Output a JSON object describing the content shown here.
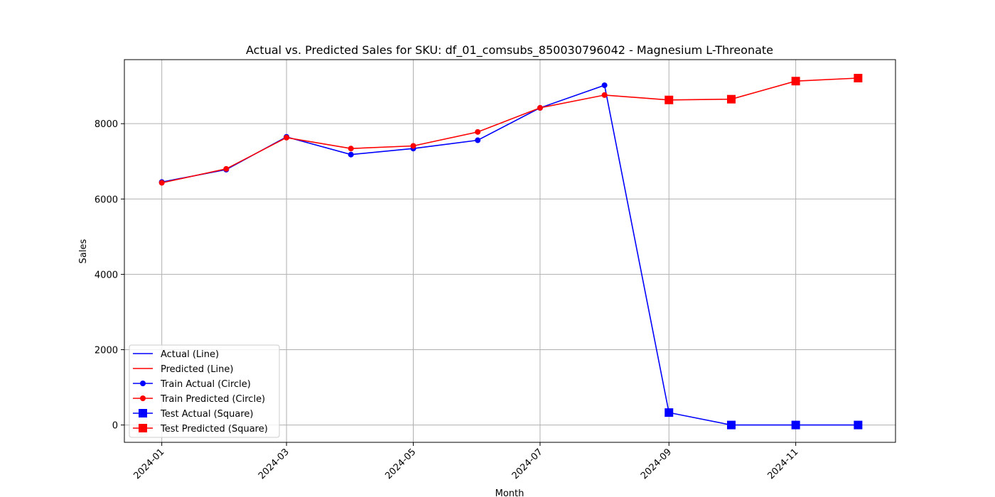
{
  "chart_data": {
    "type": "line",
    "title": "Actual vs. Predicted Sales for SKU: df_01_comsubs_850030796042 - Magnesium L-Threonate",
    "xlabel": "Month",
    "ylabel": "Sales",
    "x": [
      "2024-01-01",
      "2024-02-01",
      "2024-03-01",
      "2024-04-01",
      "2024-05-01",
      "2024-06-01",
      "2024-07-01",
      "2024-08-01",
      "2024-09-01",
      "2024-10-01",
      "2024-11-01",
      "2024-12-01"
    ],
    "x_range": [
      "2023-12-14",
      "2024-12-19"
    ],
    "ylim": [
      -460,
      9700
    ],
    "x_ticks": [
      {
        "date": "2024-01-01",
        "label": "2024-01"
      },
      {
        "date": "2024-03-01",
        "label": "2024-03"
      },
      {
        "date": "2024-05-01",
        "label": "2024-05"
      },
      {
        "date": "2024-07-01",
        "label": "2024-07"
      },
      {
        "date": "2024-09-01",
        "label": "2024-09"
      },
      {
        "date": "2024-11-01",
        "label": "2024-11"
      }
    ],
    "y_ticks": [
      {
        "value": 0,
        "label": "0"
      },
      {
        "value": 2000,
        "label": "2000"
      },
      {
        "value": 4000,
        "label": "4000"
      },
      {
        "value": 6000,
        "label": "6000"
      },
      {
        "value": 8000,
        "label": "8000"
      }
    ],
    "grid": true,
    "legend_position": "lower-left",
    "train_count": 8,
    "series": [
      {
        "name": "Actual (Line)",
        "color": "#0000ff",
        "values": [
          6450,
          6780,
          7650,
          7180,
          7340,
          7560,
          8420,
          9020,
          330,
          0,
          0,
          0
        ]
      },
      {
        "name": "Predicted (Line)",
        "color": "#ff0000",
        "values": [
          6430,
          6800,
          7630,
          7340,
          7410,
          7780,
          8420,
          8760,
          8630,
          8650,
          9130,
          9210
        ]
      }
    ],
    "legend": [
      {
        "label": "Actual (Line)",
        "color": "#0000ff",
        "marker": "none"
      },
      {
        "label": "Predicted (Line)",
        "color": "#ff0000",
        "marker": "none"
      },
      {
        "label": "Train Actual (Circle)",
        "color": "#0000ff",
        "marker": "circle"
      },
      {
        "label": "Train Predicted (Circle)",
        "color": "#ff0000",
        "marker": "circle"
      },
      {
        "label": "Test Actual (Square)",
        "color": "#0000ff",
        "marker": "square"
      },
      {
        "label": "Test Predicted (Square)",
        "color": "#ff0000",
        "marker": "square"
      }
    ]
  }
}
